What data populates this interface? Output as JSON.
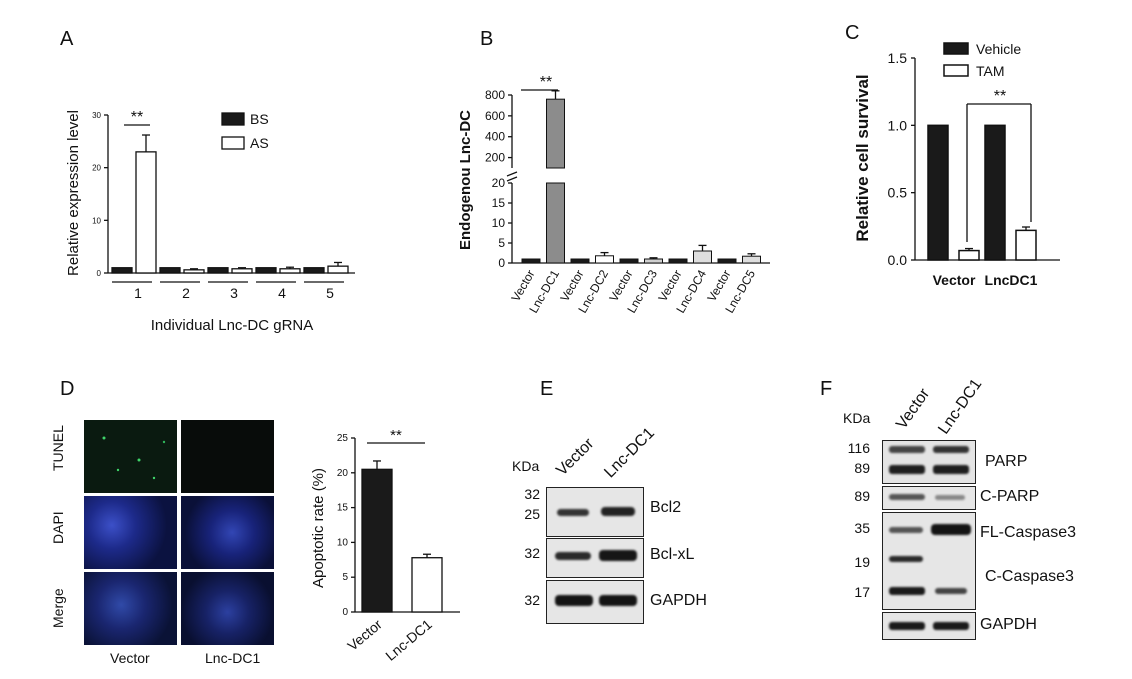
{
  "panels": {
    "A": "A",
    "B": "B",
    "C": "C",
    "D": "D",
    "E": "E",
    "F": "F"
  },
  "chart_data": [
    {
      "panel": "A",
      "type": "bar",
      "ylabel": "Relative expression level",
      "xlabel": "Individual Lnc-DC gRNA",
      "ylim": [
        0,
        30
      ],
      "yticks": [
        0,
        10,
        20,
        30
      ],
      "categories": [
        "1",
        "2",
        "3",
        "4",
        "5"
      ],
      "series": [
        {
          "name": "BS",
          "values": [
            1.0,
            1.0,
            1.0,
            1.0,
            1.0
          ],
          "errors": [
            0,
            0,
            0,
            0,
            0
          ],
          "color": "#1a1a1a"
        },
        {
          "name": "AS",
          "values": [
            23.0,
            0.6,
            0.8,
            0.8,
            1.3
          ],
          "errors": [
            3.2,
            0.2,
            0.2,
            0.3,
            0.7
          ],
          "color": "#ffffff"
        }
      ],
      "significance": [
        {
          "category": "1",
          "label": "**"
        }
      ],
      "legend": "top-right"
    },
    {
      "panel": "B",
      "type": "bar",
      "ylabel": "Endogenou Lnc-DC",
      "axis_break": true,
      "yticks_lower": [
        0,
        5,
        10,
        15,
        20
      ],
      "yticks_upper": [
        200,
        400,
        600,
        800
      ],
      "categories": [
        "Vector",
        "Lnc-DC1",
        "Vector",
        "Lnc-DC2",
        "Vector",
        "Lnc-DC3",
        "Vector",
        "Lnc-DC4",
        "Vector",
        "Lnc-DC5"
      ],
      "values": [
        1.0,
        760,
        1.0,
        1.8,
        1.0,
        1.0,
        1.0,
        3.0,
        1.0,
        1.7
      ],
      "errors": [
        0,
        80,
        0,
        0.8,
        0,
        0.3,
        0,
        1.4,
        0,
        0.6
      ],
      "colors": [
        "#1a1a1a",
        "#8c8c8c",
        "#1a1a1a",
        "#ffffff",
        "#1a1a1a",
        "#cfcfcf",
        "#1a1a1a",
        "#dedede",
        "#1a1a1a",
        "#dedede"
      ],
      "significance": [
        {
          "pair": [
            "Vector",
            "Lnc-DC1"
          ],
          "label": "**"
        }
      ]
    },
    {
      "panel": "C",
      "type": "bar",
      "ylabel": "Relative cell survival",
      "ylim": [
        0,
        1.5
      ],
      "yticks": [
        "0.0",
        "0.5",
        "1.0",
        "1.5"
      ],
      "categories": [
        "Vector",
        "LncDC1"
      ],
      "series": [
        {
          "name": "Vehicle",
          "values": [
            1.0,
            1.0
          ],
          "errors": [
            0,
            0
          ],
          "color": "#1a1a1a"
        },
        {
          "name": "TAM",
          "values": [
            0.07,
            0.22
          ],
          "errors": [
            0.015,
            0.025
          ],
          "color": "#ffffff"
        }
      ],
      "significance": [
        {
          "label": "**"
        }
      ],
      "legend": "top-left"
    },
    {
      "panel": "D",
      "type": "bar",
      "ylabel": "Apoptotic rate (%)",
      "ylim": [
        0,
        25
      ],
      "yticks": [
        0,
        5,
        10,
        15,
        20,
        25
      ],
      "categories": [
        "Vector",
        "Lnc-DC1"
      ],
      "values": [
        20.5,
        7.8
      ],
      "errors": [
        1.2,
        0.5
      ],
      "colors": [
        "#1a1a1a",
        "#ffffff"
      ],
      "significance": [
        {
          "label": "**"
        }
      ]
    }
  ],
  "micrographs": {
    "rows": [
      "TUNEL",
      "DAPI",
      "Merge"
    ],
    "columns": [
      "Vector",
      "Lnc-DC1"
    ]
  },
  "blot_E": {
    "kda": "KDa",
    "lanes": [
      "Vector",
      "Lnc-DC1"
    ],
    "bands": [
      {
        "mw": [
          "32",
          "25"
        ],
        "label": "Bcl2"
      },
      {
        "mw": [
          "32"
        ],
        "label": "Bcl-xL"
      },
      {
        "mw": [
          "32"
        ],
        "label": "GAPDH"
      }
    ]
  },
  "blot_F": {
    "kda": "KDa",
    "lanes": [
      "Vector",
      "Lnc-DC1"
    ],
    "bands": [
      {
        "mw": [
          "116",
          "89"
        ],
        "label": "PARP"
      },
      {
        "mw": [
          "89"
        ],
        "label": "C-PARP"
      },
      {
        "mw": [
          "35",
          "19",
          "17"
        ],
        "label_top": "FL-Caspase3",
        "label_bottom": "C-Caspase3"
      },
      {
        "mw": [],
        "label": "GAPDH"
      }
    ]
  }
}
